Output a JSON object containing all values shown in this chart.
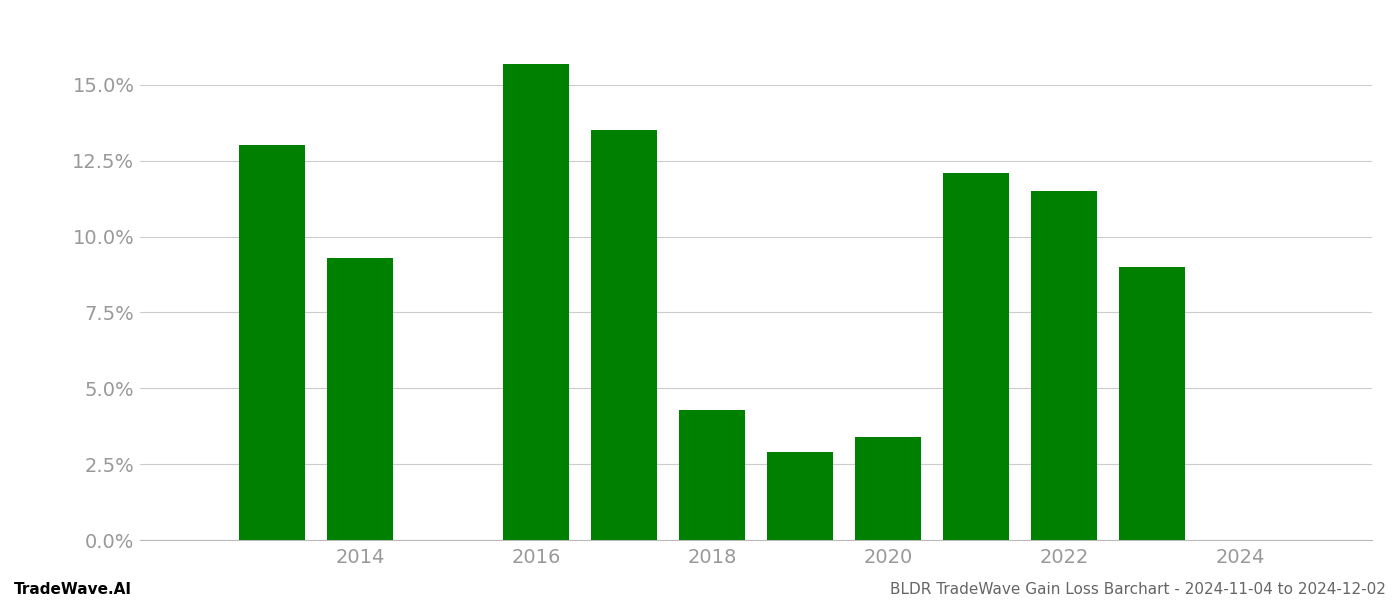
{
  "years": [
    2013,
    2014,
    2016,
    2017,
    2018,
    2019,
    2020,
    2021,
    2022,
    2023
  ],
  "values": [
    0.13,
    0.093,
    0.157,
    0.135,
    0.043,
    0.029,
    0.034,
    0.121,
    0.115,
    0.09
  ],
  "bar_color": "#008000",
  "background_color": "#ffffff",
  "xlim": [
    2011.5,
    2025.5
  ],
  "ylim": [
    0.0,
    0.172
  ],
  "yticks": [
    0.0,
    0.025,
    0.05,
    0.075,
    0.1,
    0.125,
    0.15
  ],
  "xticks": [
    2014,
    2016,
    2018,
    2020,
    2022,
    2024
  ],
  "grid_color": "#cccccc",
  "tick_color": "#999999",
  "bar_width": 0.75,
  "footer_left": "TradeWave.AI",
  "footer_right": "BLDR TradeWave Gain Loss Barchart - 2024-11-04 to 2024-12-02",
  "footer_fontsize": 11,
  "tick_fontsize": 14
}
